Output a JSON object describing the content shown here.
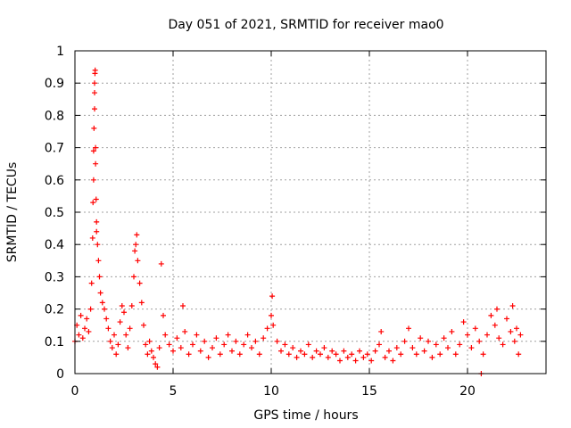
{
  "chart_data": {
    "type": "scatter",
    "title": "Day 051 of 2021, SRMTID for receiver mao0",
    "xlabel": "GPS time / hours",
    "ylabel": "SRMTID / TECUs",
    "xlim": [
      0,
      24
    ],
    "ylim": [
      0,
      1
    ],
    "xticks": [
      0,
      5,
      10,
      15,
      20
    ],
    "xtick_labels": [
      "0",
      "5",
      "10",
      "15",
      "20"
    ],
    "yticks": [
      0,
      0.1,
      0.2,
      0.3,
      0.4,
      0.5,
      0.6,
      0.7,
      0.8,
      0.9,
      1
    ],
    "ytick_labels": [
      "0",
      "0.1",
      "0.2",
      "0.3",
      "0.4",
      "0.5",
      "0.6",
      "0.7",
      "0.8",
      "0.9",
      "1"
    ],
    "grid": true,
    "marker": "+",
    "series": [
      {
        "name": "SRMTID",
        "color": "#ff0000",
        "points": [
          [
            0.0,
            0.1
          ],
          [
            0.1,
            0.15
          ],
          [
            0.2,
            0.12
          ],
          [
            0.3,
            0.18
          ],
          [
            0.4,
            0.11
          ],
          [
            0.5,
            0.14
          ],
          [
            0.6,
            0.17
          ],
          [
            0.7,
            0.13
          ],
          [
            0.8,
            0.2
          ],
          [
            0.85,
            0.28
          ],
          [
            0.9,
            0.42
          ],
          [
            0.92,
            0.53
          ],
          [
            0.95,
            0.6
          ],
          [
            0.95,
            0.69
          ],
          [
            0.97,
            0.76
          ],
          [
            1.0,
            0.82
          ],
          [
            1.0,
            0.87
          ],
          [
            1.0,
            0.9
          ],
          [
            1.02,
            0.93
          ],
          [
            1.03,
            0.94
          ],
          [
            1.05,
            0.7
          ],
          [
            1.05,
            0.65
          ],
          [
            1.08,
            0.54
          ],
          [
            1.1,
            0.47
          ],
          [
            1.1,
            0.44
          ],
          [
            1.15,
            0.4
          ],
          [
            1.2,
            0.35
          ],
          [
            1.25,
            0.3
          ],
          [
            1.3,
            0.25
          ],
          [
            1.4,
            0.22
          ],
          [
            1.5,
            0.2
          ],
          [
            1.6,
            0.17
          ],
          [
            1.7,
            0.14
          ],
          [
            1.8,
            0.1
          ],
          [
            1.9,
            0.08
          ],
          [
            2.0,
            0.12
          ],
          [
            2.1,
            0.06
          ],
          [
            2.2,
            0.09
          ],
          [
            2.3,
            0.16
          ],
          [
            2.4,
            0.21
          ],
          [
            2.5,
            0.19
          ],
          [
            2.6,
            0.12
          ],
          [
            2.7,
            0.08
          ],
          [
            2.8,
            0.14
          ],
          [
            2.9,
            0.21
          ],
          [
            3.0,
            0.3
          ],
          [
            3.05,
            0.38
          ],
          [
            3.1,
            0.4
          ],
          [
            3.15,
            0.43
          ],
          [
            3.2,
            0.35
          ],
          [
            3.3,
            0.28
          ],
          [
            3.4,
            0.22
          ],
          [
            3.5,
            0.15
          ],
          [
            3.6,
            0.09
          ],
          [
            3.7,
            0.06
          ],
          [
            3.8,
            0.1
          ],
          [
            3.9,
            0.07
          ],
          [
            4.0,
            0.05
          ],
          [
            4.1,
            0.03
          ],
          [
            4.2,
            0.02
          ],
          [
            4.3,
            0.08
          ],
          [
            4.4,
            0.34
          ],
          [
            4.5,
            0.18
          ],
          [
            4.6,
            0.12
          ],
          [
            4.8,
            0.09
          ],
          [
            5.0,
            0.07
          ],
          [
            5.2,
            0.11
          ],
          [
            5.4,
            0.08
          ],
          [
            5.5,
            0.21
          ],
          [
            5.6,
            0.13
          ],
          [
            5.8,
            0.06
          ],
          [
            6.0,
            0.09
          ],
          [
            6.2,
            0.12
          ],
          [
            6.4,
            0.07
          ],
          [
            6.6,
            0.1
          ],
          [
            6.8,
            0.05
          ],
          [
            7.0,
            0.08
          ],
          [
            7.2,
            0.11
          ],
          [
            7.4,
            0.06
          ],
          [
            7.6,
            0.09
          ],
          [
            7.8,
            0.12
          ],
          [
            8.0,
            0.07
          ],
          [
            8.2,
            0.1
          ],
          [
            8.4,
            0.06
          ],
          [
            8.6,
            0.09
          ],
          [
            8.8,
            0.12
          ],
          [
            9.0,
            0.08
          ],
          [
            9.2,
            0.1
          ],
          [
            9.4,
            0.06
          ],
          [
            9.6,
            0.11
          ],
          [
            9.8,
            0.14
          ],
          [
            10.0,
            0.18
          ],
          [
            10.05,
            0.24
          ],
          [
            10.1,
            0.15
          ],
          [
            10.3,
            0.1
          ],
          [
            10.5,
            0.07
          ],
          [
            10.7,
            0.09
          ],
          [
            10.9,
            0.06
          ],
          [
            11.1,
            0.08
          ],
          [
            11.3,
            0.05
          ],
          [
            11.5,
            0.07
          ],
          [
            11.7,
            0.06
          ],
          [
            11.9,
            0.09
          ],
          [
            12.1,
            0.05
          ],
          [
            12.3,
            0.07
          ],
          [
            12.5,
            0.06
          ],
          [
            12.7,
            0.08
          ],
          [
            12.9,
            0.05
          ],
          [
            13.1,
            0.07
          ],
          [
            13.3,
            0.06
          ],
          [
            13.5,
            0.04
          ],
          [
            13.7,
            0.07
          ],
          [
            13.9,
            0.05
          ],
          [
            14.1,
            0.06
          ],
          [
            14.3,
            0.04
          ],
          [
            14.5,
            0.07
          ],
          [
            14.7,
            0.05
          ],
          [
            14.9,
            0.06
          ],
          [
            15.1,
            0.04
          ],
          [
            15.3,
            0.07
          ],
          [
            15.5,
            0.09
          ],
          [
            15.6,
            0.13
          ],
          [
            15.8,
            0.05
          ],
          [
            16.0,
            0.07
          ],
          [
            16.2,
            0.04
          ],
          [
            16.4,
            0.08
          ],
          [
            16.6,
            0.06
          ],
          [
            16.8,
            0.1
          ],
          [
            17.0,
            0.14
          ],
          [
            17.2,
            0.08
          ],
          [
            17.4,
            0.06
          ],
          [
            17.6,
            0.11
          ],
          [
            17.8,
            0.07
          ],
          [
            18.0,
            0.1
          ],
          [
            18.2,
            0.05
          ],
          [
            18.4,
            0.09
          ],
          [
            18.6,
            0.06
          ],
          [
            18.8,
            0.11
          ],
          [
            19.0,
            0.08
          ],
          [
            19.2,
            0.13
          ],
          [
            19.4,
            0.06
          ],
          [
            19.6,
            0.09
          ],
          [
            19.8,
            0.16
          ],
          [
            20.0,
            0.12
          ],
          [
            20.2,
            0.08
          ],
          [
            20.4,
            0.14
          ],
          [
            20.6,
            0.1
          ],
          [
            20.7,
            0.0
          ],
          [
            20.8,
            0.06
          ],
          [
            21.0,
            0.12
          ],
          [
            21.2,
            0.18
          ],
          [
            21.4,
            0.15
          ],
          [
            21.5,
            0.2
          ],
          [
            21.6,
            0.11
          ],
          [
            21.8,
            0.09
          ],
          [
            22.0,
            0.17
          ],
          [
            22.2,
            0.13
          ],
          [
            22.3,
            0.21
          ],
          [
            22.4,
            0.1
          ],
          [
            22.5,
            0.14
          ],
          [
            22.6,
            0.06
          ],
          [
            22.7,
            0.12
          ]
        ]
      }
    ]
  },
  "colors": {
    "marker": "#ff0000",
    "grid": "#a0a0a0",
    "axis": "#000000",
    "background": "#ffffff"
  }
}
